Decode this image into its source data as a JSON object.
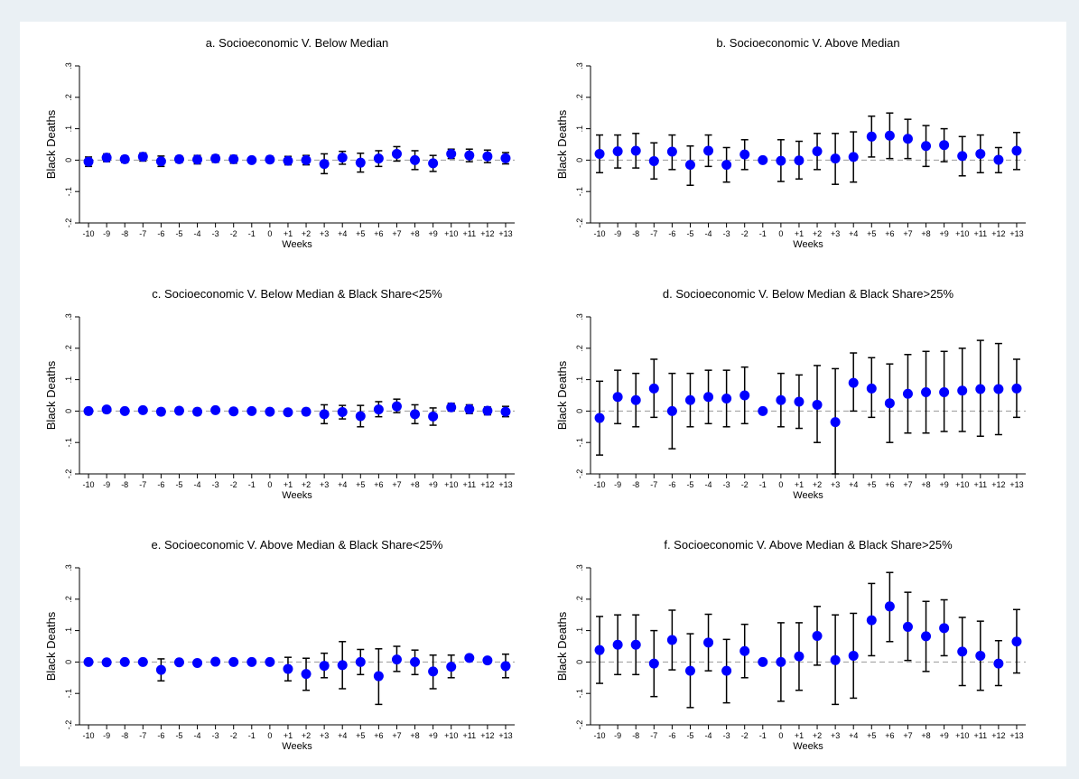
{
  "chart_data": [
    {
      "type": "scatter",
      "title": "a. Socioeconomic V. Below Median",
      "xlabel": "Weeks",
      "ylabel": "Black Deaths",
      "categories": [
        "-10",
        "-9",
        "-8",
        "-7",
        "-6",
        "-5",
        "-4",
        "-3",
        "-2",
        "-1",
        "0",
        "+1",
        "+2",
        "+3",
        "+4",
        "+5",
        "+6",
        "+7",
        "+8",
        "+9",
        "+10",
        "+11",
        "+12",
        "+13"
      ],
      "ylim": [
        -0.2,
        0.3
      ],
      "yticks": [
        ".3",
        ".2",
        ".1",
        "0",
        "-.1",
        "-.2"
      ],
      "yticks_values": [
        0.3,
        0.2,
        0.1,
        0,
        -0.1,
        -0.2
      ],
      "estimate": [
        -0.005,
        0.008,
        0.003,
        0.011,
        -0.004,
        0.003,
        0.002,
        0.005,
        0.003,
        0,
        0.002,
        -0.002,
        0,
        -0.012,
        0.008,
        -0.008,
        0.005,
        0.02,
        0,
        -0.01,
        0.02,
        0.015,
        0.012,
        0.006
      ],
      "ci_low": [
        -0.02,
        -0.005,
        -0.008,
        -0.003,
        -0.02,
        -0.008,
        -0.012,
        -0.007,
        -0.01,
        0,
        -0.008,
        -0.015,
        -0.015,
        -0.043,
        -0.013,
        -0.038,
        -0.02,
        -0.003,
        -0.03,
        -0.036,
        0.005,
        -0.005,
        -0.008,
        -0.012
      ],
      "ci_high": [
        0.01,
        0.02,
        0.013,
        0.023,
        0.013,
        0.013,
        0.015,
        0.016,
        0.015,
        0,
        0.012,
        0.012,
        0.015,
        0.02,
        0.028,
        0.022,
        0.03,
        0.043,
        0.03,
        0.015,
        0.035,
        0.035,
        0.032,
        0.024
      ],
      "reference_line": 0,
      "grid": false,
      "colors": {
        "marker": "#0000ff",
        "ci": "#000000",
        "ref": "#999999"
      }
    },
    {
      "type": "scatter",
      "title": "b. Socioeconomic V. Above Median",
      "xlabel": "Weeks",
      "ylabel": "Black Deaths",
      "categories": [
        "-10",
        "-9",
        "-8",
        "-7",
        "-6",
        "-5",
        "-4",
        "-3",
        "-2",
        "-1",
        "0",
        "+1",
        "+2",
        "+3",
        "+4",
        "+5",
        "+6",
        "+7",
        "+8",
        "+9",
        "+10",
        "+11",
        "+12",
        "+13"
      ],
      "ylim": [
        -0.2,
        0.3
      ],
      "yticks": [
        ".3",
        ".2",
        ".1",
        "0",
        "-.1",
        "-.2"
      ],
      "yticks_values": [
        0.3,
        0.2,
        0.1,
        0,
        -0.1,
        -0.2
      ],
      "estimate": [
        0.02,
        0.028,
        0.03,
        -0.003,
        0.027,
        -0.015,
        0.03,
        -0.015,
        0.018,
        0,
        -0.002,
        -0.001,
        0.028,
        0.005,
        0.01,
        0.075,
        0.078,
        0.068,
        0.045,
        0.048,
        0.013,
        0.02,
        0.001,
        0.03
      ],
      "ci_low": [
        -0.04,
        -0.025,
        -0.025,
        -0.06,
        -0.03,
        -0.08,
        -0.02,
        -0.07,
        -0.03,
        0,
        -0.068,
        -0.06,
        -0.03,
        -0.077,
        -0.07,
        0.01,
        0.005,
        0.005,
        -0.02,
        -0.005,
        -0.05,
        -0.04,
        -0.04,
        -0.03
      ],
      "ci_high": [
        0.08,
        0.08,
        0.085,
        0.055,
        0.08,
        0.045,
        0.08,
        0.04,
        0.065,
        0,
        0.065,
        0.06,
        0.085,
        0.085,
        0.09,
        0.14,
        0.15,
        0.13,
        0.11,
        0.1,
        0.075,
        0.08,
        0.04,
        0.088
      ],
      "reference_line": 0,
      "grid": false,
      "colors": {
        "marker": "#0000ff",
        "ci": "#000000",
        "ref": "#999999"
      }
    },
    {
      "type": "scatter",
      "title": "c. Socioeconomic V. Below Median & Black Share<25%",
      "xlabel": "Weeks",
      "ylabel": "Black Deaths",
      "categories": [
        "-10",
        "-9",
        "-8",
        "-7",
        "-6",
        "-5",
        "-4",
        "-3",
        "-2",
        "-1",
        "0",
        "+1",
        "+2",
        "+3",
        "+4",
        "+5",
        "+6",
        "+7",
        "+8",
        "+9",
        "+10",
        "+11",
        "+12",
        "+13"
      ],
      "ylim": [
        -0.2,
        0.3
      ],
      "yticks": [
        ".3",
        ".2",
        ".1",
        "0",
        "-.1",
        "-.2"
      ],
      "yticks_values": [
        0.3,
        0.2,
        0.1,
        0,
        -0.1,
        -0.2
      ],
      "estimate": [
        0,
        0.005,
        0,
        0.003,
        -0.002,
        0.001,
        -0.002,
        0.003,
        -0.001,
        0,
        -0.002,
        -0.004,
        -0.002,
        -0.01,
        -0.003,
        -0.016,
        0.005,
        0.015,
        -0.01,
        -0.017,
        0.012,
        0.006,
        0.001,
        -0.002
      ],
      "ci_low": [
        -0.01,
        -0.005,
        -0.008,
        -0.006,
        -0.012,
        -0.008,
        -0.012,
        -0.005,
        -0.01,
        0,
        -0.01,
        -0.013,
        -0.012,
        -0.04,
        -0.025,
        -0.05,
        -0.018,
        -0.005,
        -0.04,
        -0.045,
        0,
        -0.008,
        -0.012,
        -0.018
      ],
      "ci_high": [
        0.008,
        0.013,
        0.007,
        0.011,
        0.008,
        0.01,
        0.008,
        0.011,
        0.008,
        0,
        0.006,
        0.005,
        0.008,
        0.02,
        0.018,
        0.018,
        0.03,
        0.038,
        0.02,
        0.01,
        0.025,
        0.02,
        0.013,
        0.015
      ],
      "reference_line": 0,
      "grid": false,
      "colors": {
        "marker": "#0000ff",
        "ci": "#000000",
        "ref": "#999999"
      }
    },
    {
      "type": "scatter",
      "title": "d. Socioeconomic V. Below Median & Black Share>25%",
      "xlabel": "Weeks",
      "ylabel": "Black Deaths",
      "categories": [
        "-10",
        "-9",
        "-8",
        "-7",
        "-6",
        "-5",
        "-4",
        "-3",
        "-2",
        "-1",
        "0",
        "+1",
        "+2",
        "+3",
        "+4",
        "+5",
        "+6",
        "+7",
        "+8",
        "+9",
        "+10",
        "+11",
        "+12",
        "+13"
      ],
      "ylim": [
        -0.2,
        0.3
      ],
      "yticks": [
        ".3",
        ".2",
        ".1",
        "0",
        "-.1",
        "-.2"
      ],
      "yticks_values": [
        0.3,
        0.2,
        0.1,
        0,
        -0.1,
        -0.2
      ],
      "estimate": [
        -0.022,
        0.045,
        0.035,
        0.072,
        0,
        0.035,
        0.045,
        0.04,
        0.05,
        0,
        0.035,
        0.03,
        0.02,
        -0.035,
        0.09,
        0.072,
        0.025,
        0.055,
        0.06,
        0.06,
        0.065,
        0.07,
        0.07,
        0.072
      ],
      "ci_low": [
        -0.14,
        -0.04,
        -0.05,
        -0.02,
        -0.12,
        -0.05,
        -0.04,
        -0.05,
        -0.04,
        0,
        -0.05,
        -0.055,
        -0.1,
        -0.2,
        0,
        -0.02,
        -0.1,
        -0.07,
        -0.07,
        -0.065,
        -0.065,
        -0.08,
        -0.075,
        -0.02
      ],
      "ci_high": [
        0.095,
        0.13,
        0.12,
        0.165,
        0.12,
        0.12,
        0.13,
        0.13,
        0.14,
        0,
        0.12,
        0.115,
        0.145,
        0.135,
        0.185,
        0.17,
        0.15,
        0.18,
        0.19,
        0.19,
        0.2,
        0.225,
        0.215,
        0.165
      ],
      "reference_line": 0,
      "grid": false,
      "colors": {
        "marker": "#0000ff",
        "ci": "#000000",
        "ref": "#999999"
      }
    },
    {
      "type": "scatter",
      "title": "e. Socioeconomic V. Above Median & Black Share<25%",
      "xlabel": "Weeks",
      "ylabel": "Black Deaths",
      "categories": [
        "-10",
        "-9",
        "-8",
        "-7",
        "-6",
        "-5",
        "-4",
        "-3",
        "-2",
        "-1",
        "0",
        "+1",
        "+2",
        "+3",
        "+4",
        "+5",
        "+6",
        "+7",
        "+8",
        "+9",
        "+10",
        "+11",
        "+12",
        "+13"
      ],
      "ylim": [
        -0.2,
        0.3
      ],
      "yticks": [
        ".3",
        ".2",
        ".1",
        "0",
        "-.1",
        "-.2"
      ],
      "yticks_values": [
        0.3,
        0.2,
        0.1,
        0,
        -0.1,
        -0.2
      ],
      "estimate": [
        0,
        -0.001,
        0,
        0,
        -0.025,
        -0.001,
        -0.003,
        0.001,
        0,
        0,
        0,
        -0.022,
        -0.038,
        -0.012,
        -0.01,
        0,
        -0.045,
        0.008,
        0,
        -0.03,
        -0.015,
        0.013,
        0.005,
        -0.013
      ],
      "ci_low": [
        -0.004,
        -0.005,
        -0.004,
        -0.004,
        -0.06,
        -0.005,
        -0.007,
        -0.003,
        -0.004,
        0,
        -0.004,
        -0.06,
        -0.09,
        -0.05,
        -0.085,
        -0.04,
        -0.135,
        -0.03,
        -0.04,
        -0.085,
        -0.05,
        0.005,
        -0.003,
        -0.05
      ],
      "ci_high": [
        0.004,
        0.003,
        0.004,
        0.004,
        0.01,
        0.003,
        0.002,
        0.005,
        0.004,
        0,
        0.004,
        0.015,
        0.012,
        0.028,
        0.065,
        0.04,
        0.042,
        0.05,
        0.038,
        0.022,
        0.022,
        0.022,
        0.013,
        0.025
      ],
      "reference_line": 0,
      "grid": false,
      "colors": {
        "marker": "#0000ff",
        "ci": "#000000",
        "ref": "#999999"
      }
    },
    {
      "type": "scatter",
      "title": "f. Socioeconomic V. Above Median & Black Share>25%",
      "xlabel": "Weeks",
      "ylabel": "Black Deaths",
      "categories": [
        "-10",
        "-9",
        "-8",
        "-7",
        "-6",
        "-5",
        "-4",
        "-3",
        "-2",
        "-1",
        "0",
        "+1",
        "+2",
        "+3",
        "+4",
        "+5",
        "+6",
        "+7",
        "+8",
        "+9",
        "+10",
        "+11",
        "+12",
        "+13"
      ],
      "ylim": [
        -0.2,
        0.3
      ],
      "yticks": [
        ".3",
        ".2",
        ".1",
        "0",
        "-.1",
        "-.2"
      ],
      "yticks_values": [
        0.3,
        0.2,
        0.1,
        0,
        -0.1,
        -0.2
      ],
      "estimate": [
        0.038,
        0.055,
        0.055,
        -0.005,
        0.07,
        -0.028,
        0.062,
        -0.028,
        0.035,
        0,
        0,
        0.018,
        0.083,
        0.006,
        0.02,
        0.133,
        0.177,
        0.112,
        0.082,
        0.108,
        0.033,
        0.02,
        -0.005,
        0.065
      ],
      "ci_low": [
        -0.068,
        -0.04,
        -0.04,
        -0.11,
        -0.025,
        -0.145,
        -0.028,
        -0.13,
        -0.05,
        0,
        -0.125,
        -0.09,
        -0.01,
        -0.135,
        -0.115,
        0.02,
        0.065,
        0.005,
        -0.03,
        0.02,
        -0.075,
        -0.09,
        -0.075,
        -0.035
      ],
      "ci_high": [
        0.145,
        0.15,
        0.15,
        0.1,
        0.165,
        0.09,
        0.152,
        0.072,
        0.12,
        0,
        0.125,
        0.125,
        0.177,
        0.15,
        0.155,
        0.25,
        0.285,
        0.222,
        0.193,
        0.198,
        0.142,
        0.13,
        0.068,
        0.167
      ],
      "reference_line": 0,
      "grid": false,
      "colors": {
        "marker": "#0000ff",
        "ci": "#000000",
        "ref": "#999999"
      }
    }
  ]
}
